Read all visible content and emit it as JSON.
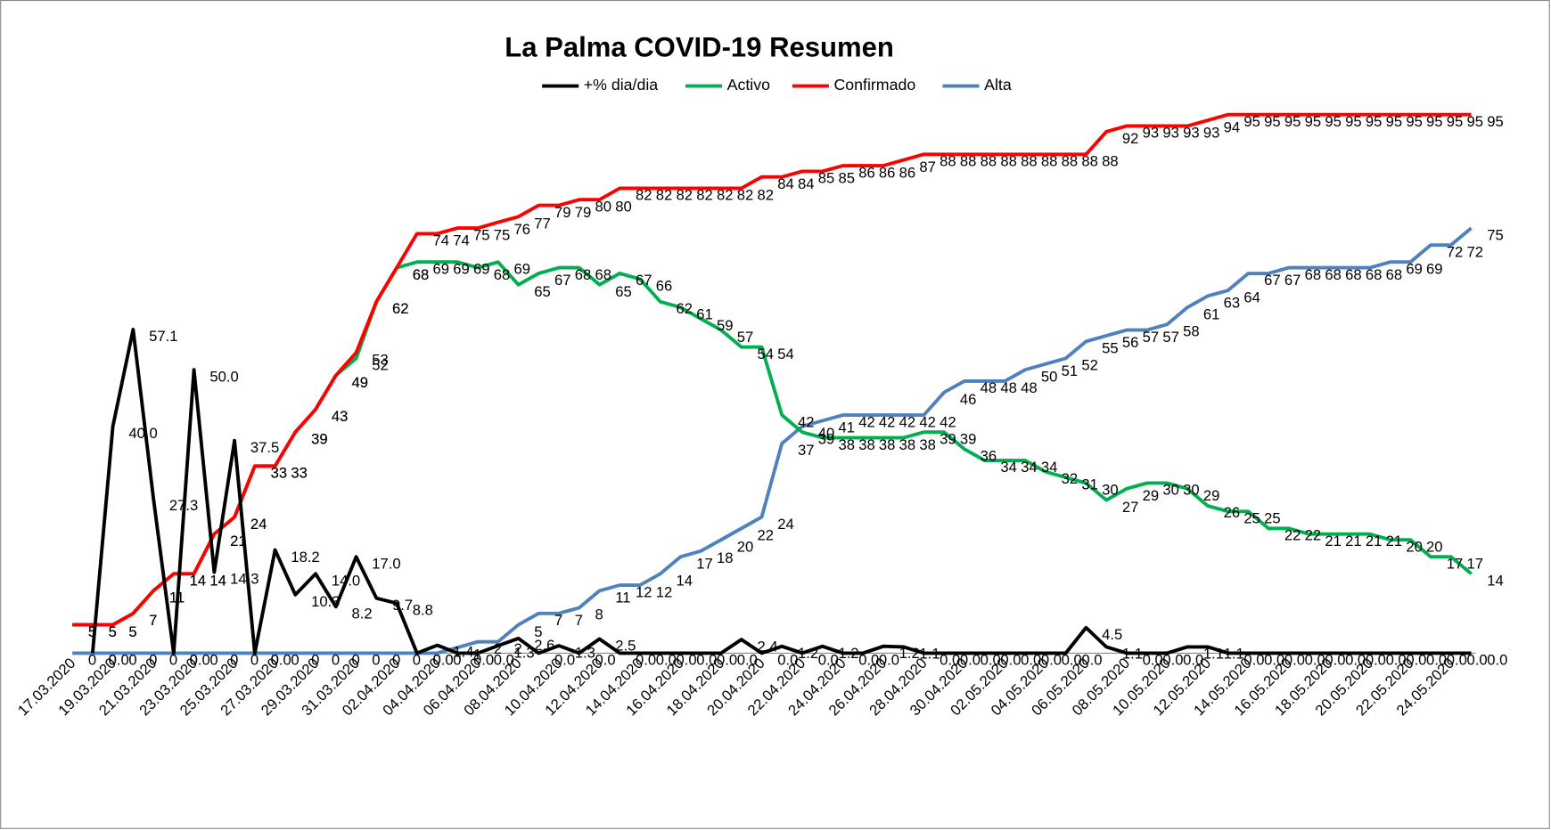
{
  "chart_data": {
    "type": "line",
    "title": "La Palma COVID-19 Resumen",
    "categories": [
      "17.03.2020",
      null,
      "19.03.2020",
      null,
      "21.03.2020",
      null,
      "23.03.2020",
      null,
      "25.03.2020",
      null,
      "27.03.2020",
      null,
      "29.03.2020",
      null,
      "31.03.2020",
      null,
      "02.04.2020",
      null,
      "04.04.2020",
      null,
      "06.04.2020",
      null,
      "08.04.2020",
      null,
      "10.04.2020",
      null,
      "12.04.2020",
      null,
      "14.04.2020",
      null,
      "16.04.2020",
      null,
      "18.04.2020",
      null,
      "20.04.2020",
      null,
      "22.04.2020",
      null,
      "24.04.2020",
      null,
      "26.04.2020",
      null,
      "28.04.2020",
      null,
      "30.04.2020",
      null,
      "02.05.2020",
      null,
      "04.05.2020",
      null,
      "06.05.2020",
      null,
      "08.05.2020",
      null,
      "10.05.2020",
      null,
      "12.05.2020",
      null,
      "14.05.2020",
      null,
      "16.05.2020",
      null,
      "18.05.2020",
      null,
      "20.05.2020",
      null,
      "22.05.2020",
      null,
      "24.05.2020",
      null
    ],
    "series": [
      {
        "name": "+% dia/dia",
        "color": "#000000",
        "values": [
          null,
          0,
          40,
          57.1,
          27.3,
          0,
          50,
          14.3,
          37.5,
          0,
          18.2,
          10.3,
          14,
          8.2,
          17,
          9.7,
          8.8,
          0,
          1.4,
          0,
          0,
          1.3,
          2.6,
          0,
          1.3,
          0,
          2.5,
          0,
          0,
          0,
          0,
          0,
          0,
          2.4,
          0,
          1.2,
          0,
          1.2,
          0,
          0,
          1.2,
          1.1,
          0,
          0,
          0,
          0,
          0,
          0,
          0,
          0,
          4.5,
          1.1,
          0,
          0,
          0,
          1.1,
          1.1,
          0,
          0,
          0,
          0,
          0,
          0,
          0,
          0,
          0,
          0,
          0,
          0,
          0
        ],
        "value_labels": [
          null,
          "0.0",
          "40.0",
          "57.1",
          "27.3",
          "0.0",
          "50.0",
          "14.3",
          "37.5",
          "0.0",
          "18.2",
          "10.3",
          "14.0",
          "8.2",
          "17.0",
          "9.7",
          "8.8",
          "0.0",
          "1.4",
          "0.0",
          "0.0",
          "1.3",
          "2.6",
          "0.0",
          "1.3",
          "0.0",
          "2.5",
          "0.0",
          "0.0",
          "0.0",
          "0.0",
          "0.0",
          "0.0",
          "2.4",
          "0.0",
          "1.2",
          "0.0",
          "1.2",
          "0.0",
          "0.0",
          "1.2",
          "1.1",
          "0.0",
          "0.0",
          "0.0",
          "0.0",
          "0.0",
          "0.0",
          "0.0",
          "0.0",
          "4.5",
          "1.1",
          "0.0",
          "0.0",
          "0.0",
          "1.1",
          "1.1",
          "0.0",
          "0.0",
          "0.0",
          "0.0",
          "0.0",
          "0.0",
          "0.0",
          "0.0",
          "0.0",
          "0.0",
          "0.0",
          "0.0",
          "0.0"
        ]
      },
      {
        "name": "Activo",
        "color": "#00b050",
        "values": [
          5,
          5,
          5,
          7,
          11,
          14,
          14,
          21,
          24,
          33,
          33,
          39,
          43,
          49,
          52,
          62,
          68,
          69,
          69,
          69,
          68,
          69,
          65,
          67,
          68,
          68,
          65,
          67,
          66,
          62,
          61,
          59,
          57,
          54,
          54,
          42,
          39,
          38,
          38,
          38,
          38,
          38,
          39,
          39,
          36,
          34,
          34,
          34,
          32,
          31,
          30,
          27,
          29,
          30,
          30,
          29,
          26,
          25,
          25,
          22,
          22,
          21,
          21,
          21,
          21,
          20,
          20,
          17,
          17,
          14
        ]
      },
      {
        "name": "Confirmado",
        "color": "#ff0000",
        "values": [
          5,
          5,
          5,
          7,
          11,
          14,
          14,
          21,
          24,
          33,
          33,
          39,
          43,
          49,
          53,
          62,
          68,
          74,
          74,
          75,
          75,
          76,
          77,
          79,
          79,
          80,
          80,
          82,
          82,
          82,
          82,
          82,
          82,
          82,
          84,
          84,
          85,
          85,
          86,
          86,
          86,
          87,
          88,
          88,
          88,
          88,
          88,
          88,
          88,
          88,
          88,
          92,
          93,
          93,
          93,
          93,
          94,
          95,
          95,
          95,
          95,
          95,
          95,
          95,
          95,
          95,
          95,
          95,
          95,
          95
        ]
      },
      {
        "name": "Alta",
        "color": "#4f81bd",
        "values": [
          0,
          0,
          0,
          0,
          0,
          0,
          0,
          0,
          0,
          0,
          0,
          0,
          0,
          0,
          0,
          0,
          0,
          0,
          0,
          1,
          2,
          2,
          5,
          7,
          7,
          8,
          11,
          12,
          12,
          14,
          17,
          18,
          20,
          22,
          24,
          37,
          40,
          41,
          42,
          42,
          42,
          42,
          42,
          46,
          48,
          48,
          48,
          50,
          51,
          52,
          55,
          56,
          57,
          57,
          58,
          61,
          63,
          64,
          67,
          67,
          68,
          68,
          68,
          68,
          68,
          69,
          69,
          72,
          72,
          75
        ]
      }
    ],
    "ylim": [
      0,
      110
    ]
  }
}
